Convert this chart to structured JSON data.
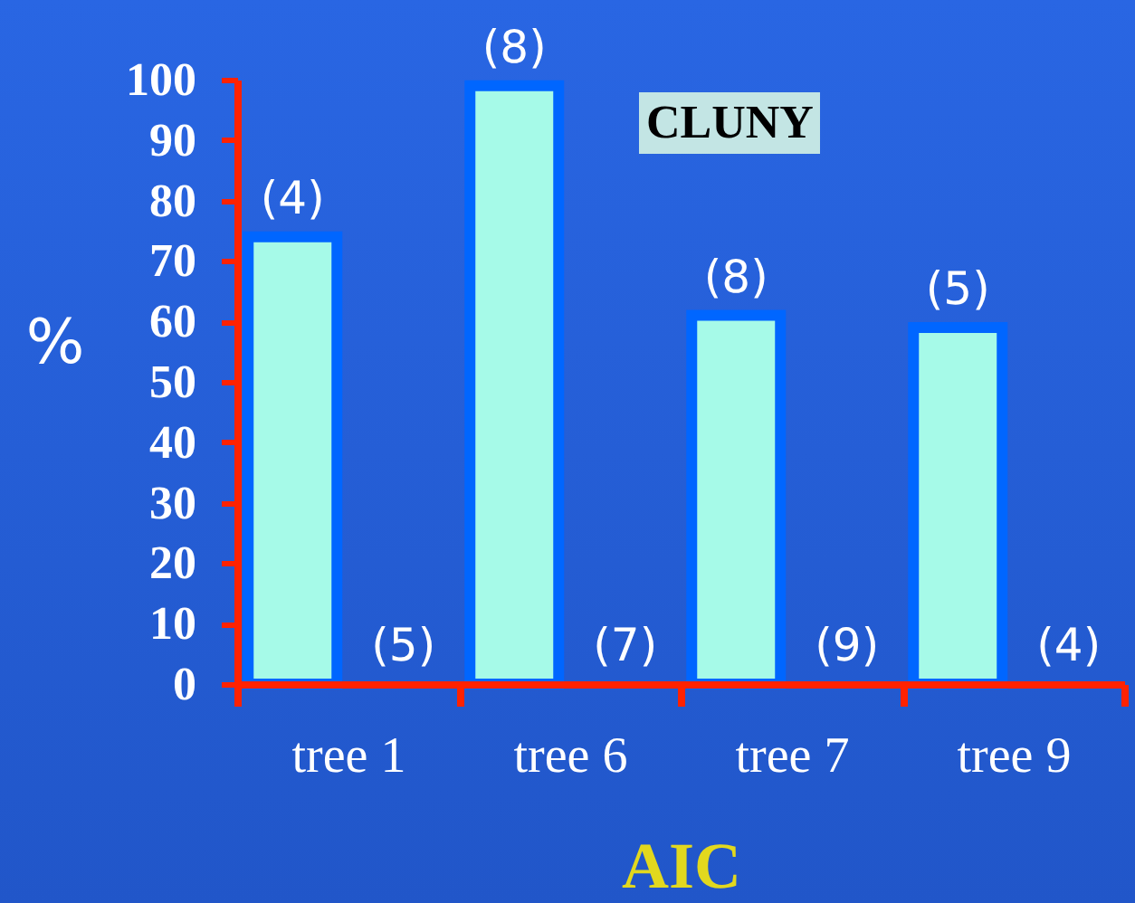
{
  "chart_data": {
    "type": "bar",
    "title": "CLUNY",
    "xlabel": "AIC",
    "ylabel": "%",
    "categories": [
      "tree 1",
      "tree 6",
      "tree 7",
      "tree 9"
    ],
    "series": [
      {
        "color": "#a6fae8",
        "values": [
          74,
          99,
          61,
          59
        ]
      },
      {
        "color": "#a6fae8",
        "values": [
          0,
          0,
          0,
          0
        ]
      }
    ],
    "ylim": [
      0,
      100
    ],
    "yticks": [
      0,
      10,
      20,
      30,
      40,
      50,
      60,
      70,
      80,
      90,
      100
    ],
    "annotations": [
      "(4)",
      "(5)",
      "(8)",
      "(7)",
      "(8)",
      "(9)",
      "(5)",
      "(4)"
    ]
  }
}
